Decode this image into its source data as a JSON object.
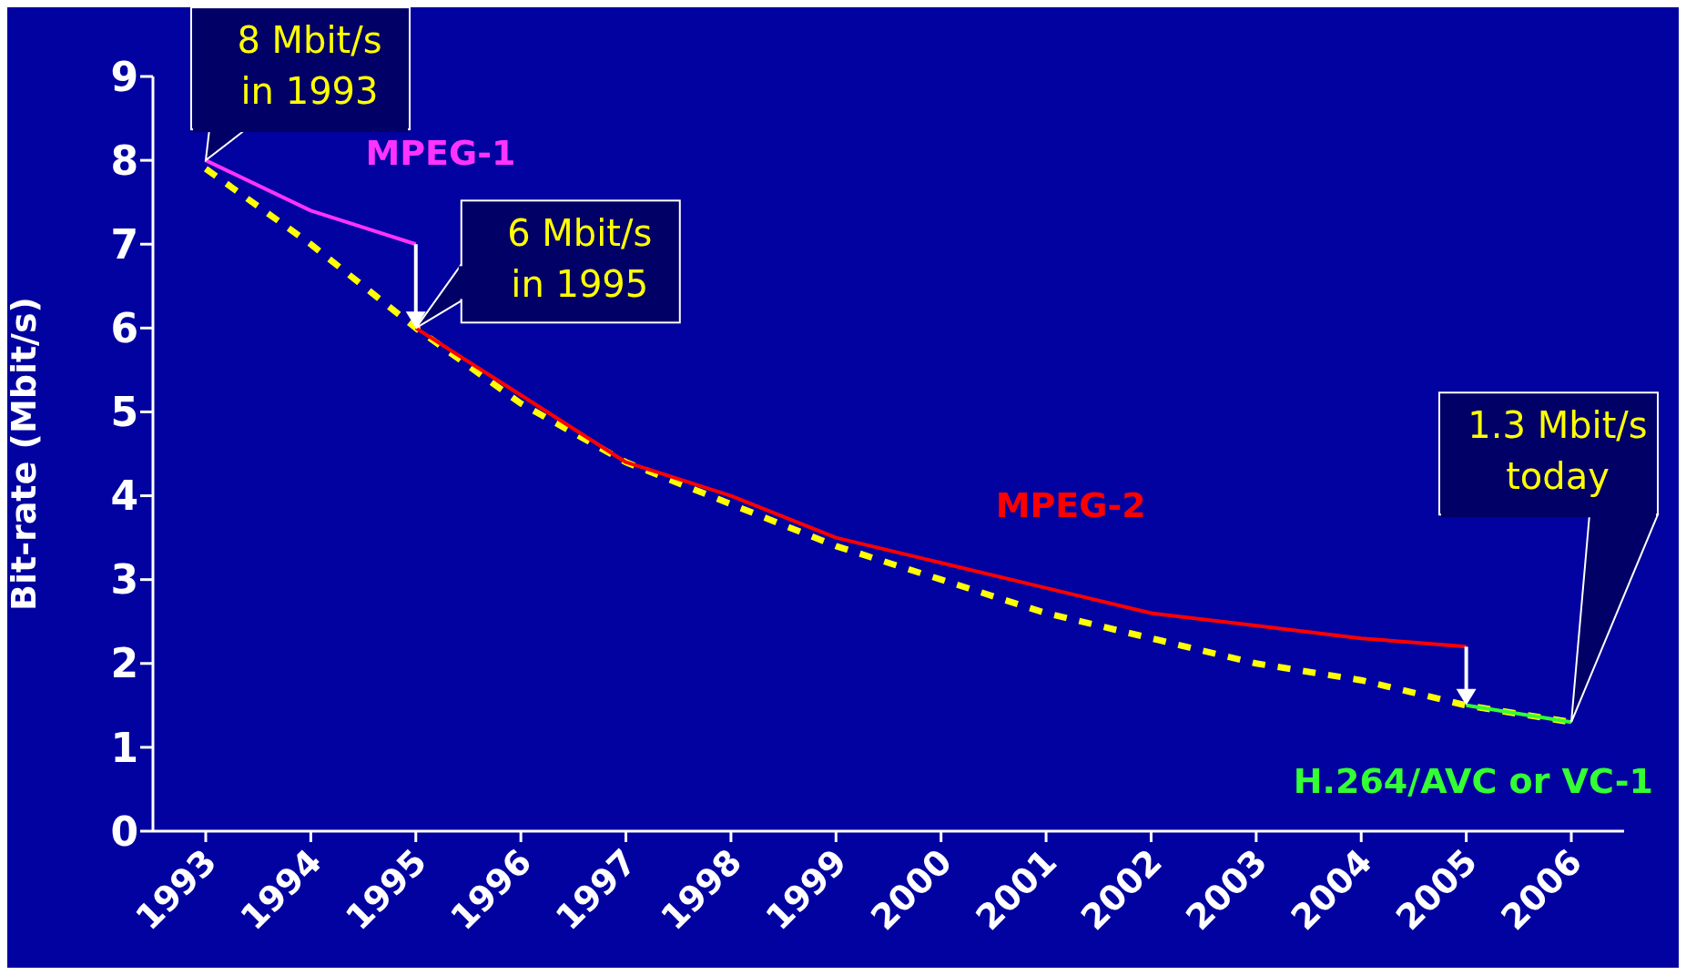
{
  "chart_data": {
    "type": "line",
    "ylabel": "Bit-rate (Mbit/s)",
    "categories": [
      "1993",
      "1994",
      "1995",
      "1996",
      "1997",
      "1998",
      "1999",
      "2000",
      "2001",
      "2002",
      "2003",
      "2004",
      "2005",
      "2006"
    ],
    "ylim": [
      0,
      9
    ],
    "yticks": [
      0,
      1,
      2,
      3,
      4,
      5,
      6,
      7,
      8,
      9
    ],
    "marker": "none",
    "series": [
      {
        "type": "line",
        "color": "#ffff00",
        "line_style": "dashed",
        "values": [
          7.9,
          7.0,
          6.0,
          5.1,
          4.4,
          3.9,
          3.4,
          3.0,
          2.6,
          2.3,
          2.0,
          1.8,
          1.5,
          1.3
        ]
      },
      {
        "name": "MPEG-1",
        "color": "#ff33ff",
        "values": [
          8.0,
          7.4,
          7.0,
          null,
          null,
          null,
          null,
          null,
          null,
          null,
          null,
          null,
          null,
          null
        ]
      },
      {
        "name": "MPEG-2",
        "color": "#ff0000",
        "values": [
          null,
          null,
          6.0,
          5.2,
          4.4,
          4.0,
          3.5,
          3.2,
          2.9,
          2.6,
          2.45,
          2.3,
          2.2,
          null
        ]
      },
      {
        "name": "H.264/AVC or VC-1",
        "color": "#33ff33",
        "values": [
          null,
          null,
          null,
          null,
          null,
          null,
          null,
          null,
          null,
          null,
          null,
          null,
          1.5,
          1.3
        ]
      }
    ],
    "annotations": [
      {
        "text": "8 Mbit/s\nin 1993",
        "x": "1993",
        "y": 8
      },
      {
        "text": "6 Mbit/s\nin 1995",
        "x": "1995",
        "y": 6
      },
      {
        "text": "1.3 Mbit/s\ntoday",
        "x": "2006",
        "y": 1.3
      }
    ]
  }
}
